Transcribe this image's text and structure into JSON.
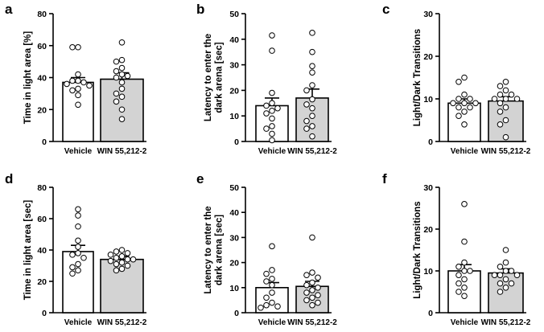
{
  "chart_data": [
    {
      "panel": "a",
      "type": "bar",
      "ylabel": "Time in light area [%]",
      "ylim": [
        0,
        80
      ],
      "yticks": [
        0,
        20,
        40,
        60,
        80
      ],
      "categories": [
        "Vehicle",
        "WIN 55,212-2"
      ],
      "values": [
        37,
        39
      ],
      "sem": [
        3,
        4
      ],
      "bar_colors": [
        "#ffffff",
        "#d3d3d3"
      ],
      "points": [
        [
          59,
          59,
          42,
          38,
          38,
          37,
          36,
          35,
          33,
          32,
          29,
          23
        ],
        [
          62,
          51,
          50,
          46,
          44,
          42,
          41,
          40,
          37,
          33,
          30,
          28,
          25,
          20,
          14
        ]
      ]
    },
    {
      "panel": "b",
      "type": "bar",
      "ylabel": "Latency to enter the dark arena [sec]",
      "ylim": [
        0,
        50
      ],
      "yticks": [
        0,
        10,
        20,
        30,
        40,
        50
      ],
      "categories": [
        "Vehicle",
        "WIN 55,212-2"
      ],
      "values": [
        14,
        17
      ],
      "sem": [
        3,
        3.5
      ],
      "bar_colors": [
        "#ffffff",
        "#d3d3d3"
      ],
      "points": [
        [
          41.5,
          35.5,
          19,
          15,
          14,
          13,
          12,
          11,
          9,
          6,
          5,
          3,
          0.5
        ],
        [
          42.5,
          35,
          29.5,
          27,
          22,
          20,
          16.5,
          14.5,
          13,
          10,
          8,
          6,
          5,
          2
        ]
      ]
    },
    {
      "panel": "c",
      "type": "bar",
      "ylabel": "Light/Dark Transitions",
      "ylim": [
        0,
        30
      ],
      "yticks": [
        0,
        10,
        20,
        30
      ],
      "categories": [
        "Vehicle",
        "WIN 55,212-2"
      ],
      "values": [
        9,
        9.5
      ],
      "sem": [
        1,
        1
      ],
      "bar_colors": [
        "#ffffff",
        "#d3d3d3"
      ],
      "points": [
        [
          15,
          14,
          11,
          10,
          10,
          9,
          9,
          9,
          8,
          8,
          7,
          6,
          4
        ],
        [
          14,
          13,
          12,
          11,
          11,
          10,
          10,
          10,
          9,
          8,
          7,
          5,
          4,
          1
        ]
      ]
    },
    {
      "panel": "d",
      "type": "bar",
      "ylabel": "Time in light area [sec]",
      "ylim": [
        0,
        80
      ],
      "yticks": [
        0,
        20,
        40,
        60,
        80
      ],
      "categories": [
        "Vehicle",
        "WIN 55,212-2"
      ],
      "values": [
        39,
        34
      ],
      "sem": [
        4,
        2
      ],
      "bar_colors": [
        "#ffffff",
        "#d3d3d3"
      ],
      "points": [
        [
          66,
          62,
          55,
          46,
          42,
          38,
          37,
          35,
          31,
          29,
          27,
          25
        ],
        [
          40,
          39,
          38,
          37,
          36,
          35,
          34,
          34,
          33,
          32,
          31,
          30,
          28,
          27
        ]
      ]
    },
    {
      "panel": "e",
      "type": "bar",
      "ylabel": "Latency to enter the dark arena [sec]",
      "ylim": [
        0,
        50
      ],
      "yticks": [
        0,
        10,
        20,
        30,
        40,
        50
      ],
      "categories": [
        "Vehicle",
        "WIN 55,212-2"
      ],
      "values": [
        10,
        10.5
      ],
      "sem": [
        2,
        2
      ],
      "bar_colors": [
        "#ffffff",
        "#d3d3d3"
      ],
      "points": [
        [
          26.5,
          17,
          15.5,
          13.5,
          12.5,
          11,
          8,
          6,
          4,
          3,
          2.5,
          2
        ],
        [
          30,
          16,
          15,
          14,
          12,
          11,
          10,
          9,
          8,
          7,
          6,
          5,
          4,
          3
        ]
      ]
    },
    {
      "panel": "f",
      "type": "bar",
      "ylabel": "Light/Dark Transitions",
      "ylim": [
        0,
        30
      ],
      "yticks": [
        0,
        10,
        20,
        30
      ],
      "categories": [
        "Vehicle",
        "WIN 55,212-2"
      ],
      "values": [
        10,
        9.5
      ],
      "sem": [
        1.5,
        1
      ],
      "bar_colors": [
        "#ffffff",
        "#d3d3d3"
      ],
      "points": [
        [
          26,
          17,
          12,
          11,
          10,
          10,
          9,
          8,
          7,
          6,
          5,
          4
        ],
        [
          15,
          12,
          11,
          10,
          10,
          9,
          9,
          9,
          8,
          7,
          7,
          6,
          5
        ]
      ]
    }
  ]
}
